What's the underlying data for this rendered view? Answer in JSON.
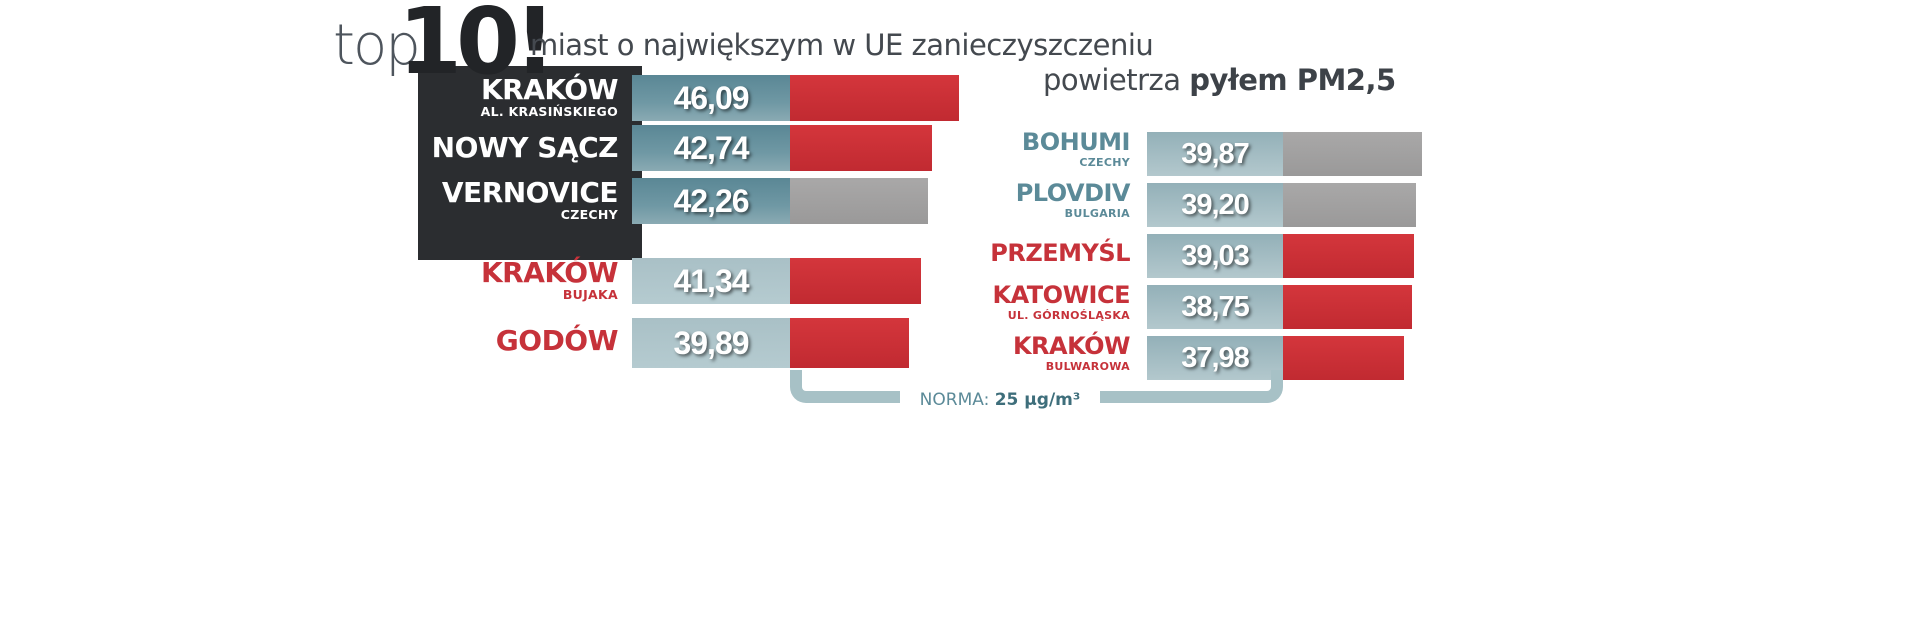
{
  "title": {
    "top": "top",
    "ten": "10!",
    "line1": "miast o największym w UE zanieczyszczeniu",
    "line2_prefix": "powietrza ",
    "line2_bold": "pyłem PM2,5"
  },
  "chart_data": {
    "type": "bar",
    "title": "top 10! miast o największym w UE zanieczyszczeniu powietrza pyłem PM2,5",
    "norm_label": "NORMA:",
    "norm_value": "25 µg/m³",
    "norm": 25,
    "left": [
      {
        "city": "KRAKÓW",
        "sub": "AL. KRASIŃSKIEGO",
        "value": 46.09,
        "value_text": "46,09",
        "color": "#c6323a"
      },
      {
        "city": "NOWY SĄCZ",
        "sub": "",
        "value": 42.74,
        "value_text": "42,74",
        "color": "#c6323a"
      },
      {
        "city": "VERNOVICE",
        "sub": "CZECHY",
        "value": 42.26,
        "value_text": "42,26",
        "color": "#9a9999"
      },
      {
        "city": "KRAKÓW",
        "sub": "BUJAKA",
        "value": 41.34,
        "value_text": "41,34",
        "color": "#c6323a"
      },
      {
        "city": "GODÓW",
        "sub": "",
        "value": 39.89,
        "value_text": "39,89",
        "color": "#c6323a"
      }
    ],
    "right": [
      {
        "city": "BOHUMI",
        "sub": "CZECHY",
        "value": 39.87,
        "value_text": "39,87",
        "color": "#9a9999"
      },
      {
        "city": "PLOVDIV",
        "sub": "BULGARIA",
        "value": 39.2,
        "value_text": "39,20",
        "color": "#9a9999"
      },
      {
        "city": "PRZEMYŚL",
        "sub": "",
        "value": 39.03,
        "value_text": "39,03",
        "color": "#c6323a"
      },
      {
        "city": "KATOWICE",
        "sub": "UL. GÓRNOŚLĄSKA",
        "value": 38.75,
        "value_text": "38,75",
        "color": "#c6323a"
      },
      {
        "city": "KRAKÓW",
        "sub": "BULWAROWA",
        "value": 37.98,
        "value_text": "37,98",
        "color": "#c6323a"
      }
    ]
  }
}
